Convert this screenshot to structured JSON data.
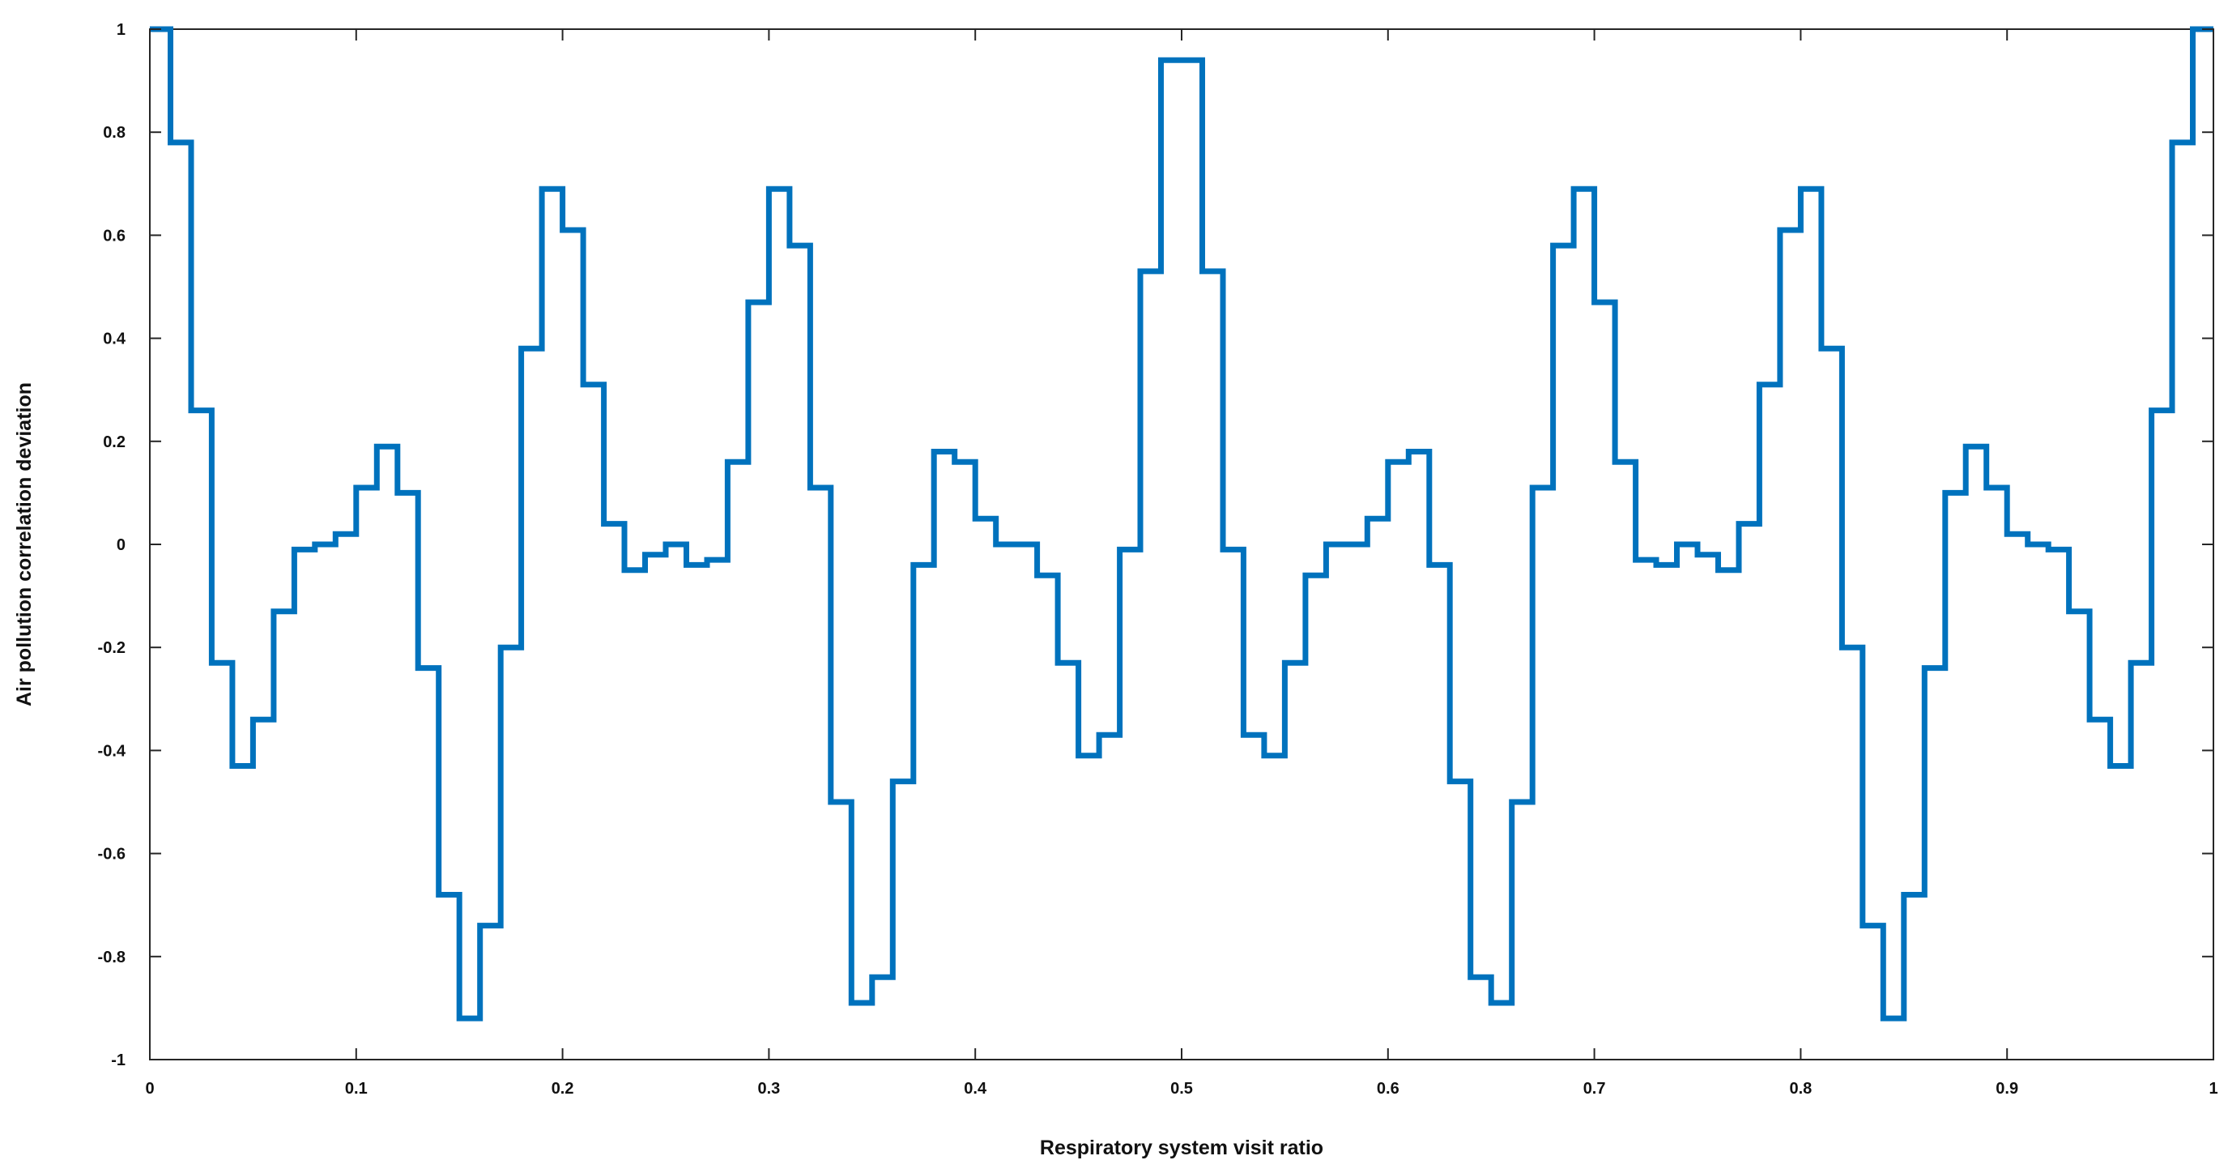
{
  "chart_data": {
    "type": "line",
    "step": true,
    "xlabel": "Respiratory system visit ratio",
    "ylabel": "Air pollution correlation deviation",
    "xlim": [
      0,
      1
    ],
    "ylim": [
      -1,
      1
    ],
    "grid": false,
    "legend": "none",
    "xticks": [
      "0",
      "0.1",
      "0.2",
      "0.3",
      "0.4",
      "0.5",
      "0.6",
      "0.7",
      "0.8",
      "0.9",
      "1"
    ],
    "yticks": [
      "-1",
      "-0.8",
      "-0.6",
      "-0.4",
      "-0.2",
      "0",
      "0.2",
      "0.4",
      "0.6",
      "0.8",
      "1"
    ],
    "series": [
      {
        "color": "#0072BD",
        "step_width": 0.01,
        "x": [
          0.0,
          0.01,
          0.02,
          0.03,
          0.04,
          0.05,
          0.06,
          0.07,
          0.08,
          0.09,
          0.1,
          0.11,
          0.12,
          0.13,
          0.14,
          0.15,
          0.16,
          0.17,
          0.18,
          0.19,
          0.2,
          0.21,
          0.22,
          0.23,
          0.24,
          0.25,
          0.26,
          0.27,
          0.28,
          0.29,
          0.3,
          0.31,
          0.32,
          0.33,
          0.34,
          0.35,
          0.36,
          0.37,
          0.38,
          0.39,
          0.4,
          0.41,
          0.42,
          0.43,
          0.44,
          0.45,
          0.46,
          0.47,
          0.48,
          0.49,
          0.5,
          0.51,
          0.52,
          0.53,
          0.54,
          0.55,
          0.56,
          0.57,
          0.58,
          0.59,
          0.6,
          0.61,
          0.62,
          0.63,
          0.64,
          0.65,
          0.66,
          0.67,
          0.68,
          0.69,
          0.7,
          0.71,
          0.72,
          0.73,
          0.74,
          0.75,
          0.76,
          0.77,
          0.78,
          0.79,
          0.8,
          0.81,
          0.82,
          0.83,
          0.84,
          0.85,
          0.86,
          0.87,
          0.88,
          0.89,
          0.9,
          0.91,
          0.92,
          0.93,
          0.94,
          0.95,
          0.96,
          0.97,
          0.98,
          0.99
        ],
        "y": [
          1.0,
          0.78,
          0.26,
          -0.23,
          -0.43,
          -0.34,
          -0.13,
          -0.01,
          0.0,
          0.02,
          0.11,
          0.19,
          0.1,
          -0.24,
          -0.68,
          -0.92,
          -0.74,
          -0.2,
          0.38,
          0.69,
          0.61,
          0.31,
          0.04,
          -0.05,
          -0.02,
          0.0,
          -0.04,
          -0.03,
          0.16,
          0.47,
          0.69,
          0.58,
          0.11,
          -0.5,
          -0.89,
          -0.84,
          -0.46,
          -0.04,
          0.18,
          0.16,
          0.05,
          0.0,
          0.0,
          -0.06,
          -0.23,
          -0.41,
          -0.37,
          -0.01,
          0.53,
          0.94,
          0.94,
          0.53,
          -0.01,
          -0.37,
          -0.41,
          -0.23,
          -0.06,
          0.0,
          0.0,
          0.05,
          0.16,
          0.18,
          -0.04,
          -0.46,
          -0.84,
          -0.89,
          -0.5,
          0.11,
          0.58,
          0.69,
          0.47,
          0.16,
          -0.03,
          -0.04,
          0.0,
          -0.02,
          -0.05,
          0.04,
          0.31,
          0.61,
          0.69,
          0.38,
          -0.2,
          -0.74,
          -0.92,
          -0.68,
          -0.24,
          0.1,
          0.19,
          0.11,
          0.02,
          0.0,
          -0.01,
          -0.13,
          -0.34,
          -0.43,
          -0.23,
          0.26,
          0.78,
          1.0
        ]
      }
    ]
  }
}
